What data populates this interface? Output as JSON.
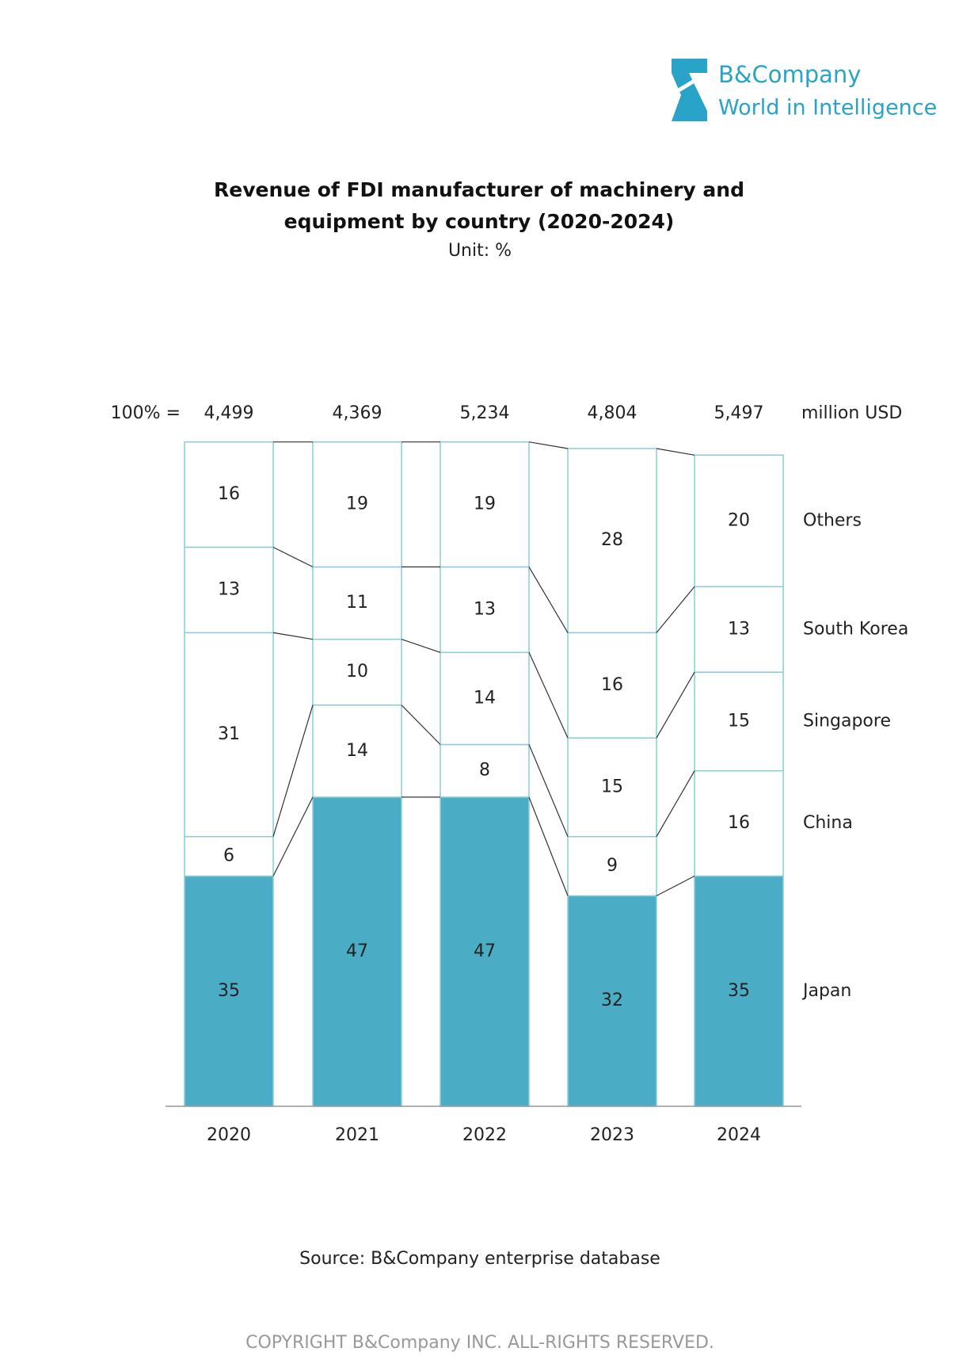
{
  "chart_data": {
    "type": "stacked_bar",
    "brand": {
      "name": "B&Company",
      "tagline": "World in Intelligence"
    },
    "title": "Revenue of FDI manufacturer of machinery and equipment by country (2020-2024)",
    "subtitle": "Unit: %",
    "categories": [
      "2020",
      "2021",
      "2022",
      "2023",
      "2024"
    ],
    "series": [
      {
        "name": "Japan",
        "color": "#4bacc6",
        "values": [
          35,
          47,
          47,
          32,
          35
        ]
      },
      {
        "name": "China",
        "color": "#ffffff",
        "values": [
          6,
          14,
          8,
          9,
          16
        ]
      },
      {
        "name": "Singapore",
        "color": "#ffffff",
        "values": [
          31,
          10,
          14,
          15,
          15
        ]
      },
      {
        "name": "South Korea",
        "color": "#ffffff",
        "values": [
          13,
          11,
          13,
          16,
          13
        ]
      },
      {
        "name": "Others",
        "color": "#ffffff",
        "values": [
          16,
          19,
          19,
          28,
          20
        ]
      }
    ],
    "totals": {
      "prefix": "100% =",
      "unit": "million USD",
      "values": [
        4499,
        4369,
        5234,
        4804,
        5497
      ],
      "value_labels": [
        "4,499",
        "4,369",
        "5,234",
        "4,804",
        "5,497"
      ]
    },
    "ylim": [
      0,
      100
    ],
    "source": "Source: B&Company enterprise database",
    "copyright": "COPYRIGHT B&Company INC. ALL-RIGHTS RESERVED."
  }
}
